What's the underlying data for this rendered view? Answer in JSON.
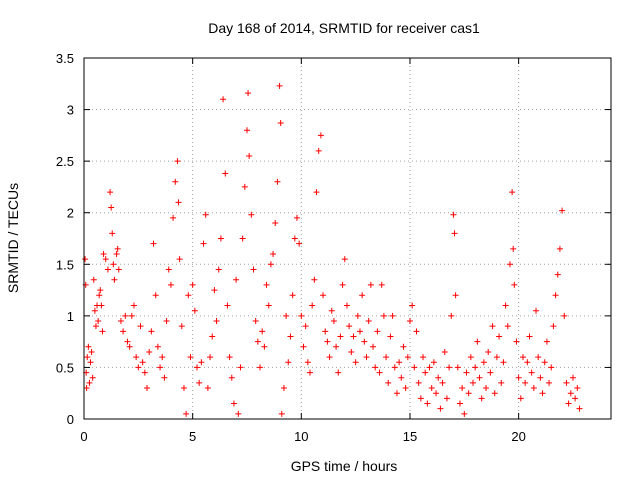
{
  "chart_data": {
    "type": "scatter",
    "title": "Day 168 of 2014, SRMTID for receiver cas1",
    "xlabel": "GPS time / hours",
    "ylabel": "SRMTID / TECUs",
    "xlim": [
      0,
      24.25
    ],
    "ylim": [
      0,
      3.5
    ],
    "x_ticks": [
      0,
      5,
      10,
      15,
      20
    ],
    "x_tick_labels": [
      "0",
      "5",
      "10",
      "15",
      "20"
    ],
    "y_ticks": [
      0,
      0.5,
      1,
      1.5,
      2,
      2.5,
      3,
      3.5
    ],
    "y_tick_labels": [
      "0",
      "0.5",
      "1",
      "1.5",
      "2",
      "2.5",
      "3",
      "3.5"
    ],
    "grid": true,
    "marker": "+",
    "marker_color": "#ff0000",
    "series": [
      {
        "name": "cas1",
        "points": [
          [
            0.05,
            1.55
          ],
          [
            0.08,
            1.3
          ],
          [
            0.1,
            0.45
          ],
          [
            0.12,
            0.3
          ],
          [
            0.15,
            0.6
          ],
          [
            0.2,
            0.7
          ],
          [
            0.25,
            0.35
          ],
          [
            0.3,
            0.55
          ],
          [
            0.35,
            0.65
          ],
          [
            0.4,
            0.4
          ],
          [
            0.45,
            1.35
          ],
          [
            0.5,
            1.05
          ],
          [
            0.55,
            0.9
          ],
          [
            0.6,
            1.1
          ],
          [
            0.65,
            0.95
          ],
          [
            0.7,
            1.2
          ],
          [
            0.75,
            1.25
          ],
          [
            0.8,
            1.1
          ],
          [
            0.85,
            0.85
          ],
          [
            0.9,
            1.6
          ],
          [
            1.0,
            1.55
          ],
          [
            1.1,
            1.45
          ],
          [
            1.2,
            2.2
          ],
          [
            1.25,
            2.05
          ],
          [
            1.3,
            1.8
          ],
          [
            1.35,
            1.5
          ],
          [
            1.4,
            1.35
          ],
          [
            1.5,
            1.6
          ],
          [
            1.55,
            1.65
          ],
          [
            1.6,
            1.45
          ],
          [
            1.7,
            0.95
          ],
          [
            1.8,
            0.85
          ],
          [
            1.9,
            1.0
          ],
          [
            2.0,
            0.75
          ],
          [
            2.1,
            0.7
          ],
          [
            2.2,
            1.0
          ],
          [
            2.3,
            1.1
          ],
          [
            2.4,
            0.6
          ],
          [
            2.5,
            0.5
          ],
          [
            2.6,
            0.9
          ],
          [
            2.7,
            0.55
          ],
          [
            2.8,
            0.45
          ],
          [
            2.9,
            0.3
          ],
          [
            3.0,
            0.65
          ],
          [
            3.1,
            0.85
          ],
          [
            3.2,
            1.7
          ],
          [
            3.3,
            1.2
          ],
          [
            3.4,
            0.7
          ],
          [
            3.5,
            0.5
          ],
          [
            3.6,
            0.6
          ],
          [
            3.7,
            0.4
          ],
          [
            3.8,
            0.95
          ],
          [
            3.9,
            1.45
          ],
          [
            4.0,
            1.3
          ],
          [
            4.1,
            1.95
          ],
          [
            4.2,
            2.3
          ],
          [
            4.3,
            2.5
          ],
          [
            4.35,
            2.1
          ],
          [
            4.4,
            1.55
          ],
          [
            4.5,
            0.9
          ],
          [
            4.6,
            0.3
          ],
          [
            4.7,
            0.05
          ],
          [
            4.8,
            1.2
          ],
          [
            4.9,
            0.6
          ],
          [
            5.0,
            1.3
          ],
          [
            5.1,
            1.05
          ],
          [
            5.2,
            0.5
          ],
          [
            5.3,
            0.35
          ],
          [
            5.4,
            0.55
          ],
          [
            5.5,
            1.7
          ],
          [
            5.6,
            1.98
          ],
          [
            5.7,
            0.3
          ],
          [
            5.8,
            0.6
          ],
          [
            5.9,
            0.8
          ],
          [
            6.0,
            1.25
          ],
          [
            6.1,
            0.95
          ],
          [
            6.2,
            1.45
          ],
          [
            6.3,
            1.75
          ],
          [
            6.4,
            3.1
          ],
          [
            6.5,
            2.38
          ],
          [
            6.6,
            1.1
          ],
          [
            6.7,
            0.6
          ],
          [
            6.8,
            0.4
          ],
          [
            6.9,
            0.15
          ],
          [
            7.0,
            1.35
          ],
          [
            7.1,
            0.05
          ],
          [
            7.2,
            0.5
          ],
          [
            7.3,
            1.75
          ],
          [
            7.4,
            2.25
          ],
          [
            7.5,
            2.8
          ],
          [
            7.55,
            3.16
          ],
          [
            7.6,
            2.55
          ],
          [
            7.7,
            1.98
          ],
          [
            7.8,
            1.45
          ],
          [
            7.9,
            0.95
          ],
          [
            8.0,
            0.75
          ],
          [
            8.1,
            0.5
          ],
          [
            8.2,
            0.85
          ],
          [
            8.3,
            0.7
          ],
          [
            8.4,
            1.3
          ],
          [
            8.5,
            1.1
          ],
          [
            8.6,
            1.5
          ],
          [
            8.7,
            1.6
          ],
          [
            8.8,
            1.9
          ],
          [
            8.9,
            2.3
          ],
          [
            9.0,
            3.23
          ],
          [
            9.05,
            2.87
          ],
          [
            9.1,
            0.05
          ],
          [
            9.2,
            0.3
          ],
          [
            9.3,
            1.0
          ],
          [
            9.4,
            0.55
          ],
          [
            9.5,
            0.8
          ],
          [
            9.6,
            1.2
          ],
          [
            9.7,
            1.75
          ],
          [
            9.8,
            1.95
          ],
          [
            9.9,
            1.7
          ],
          [
            10.0,
            1.0
          ],
          [
            10.1,
            0.7
          ],
          [
            10.2,
            0.9
          ],
          [
            10.3,
            0.55
          ],
          [
            10.4,
            0.45
          ],
          [
            10.5,
            1.1
          ],
          [
            10.6,
            1.35
          ],
          [
            10.7,
            2.2
          ],
          [
            10.8,
            2.6
          ],
          [
            10.9,
            2.75
          ],
          [
            11.0,
            1.2
          ],
          [
            11.1,
            0.85
          ],
          [
            11.2,
            0.75
          ],
          [
            11.3,
            0.6
          ],
          [
            11.4,
            1.05
          ],
          [
            11.5,
            0.95
          ],
          [
            11.6,
            0.7
          ],
          [
            11.7,
            0.45
          ],
          [
            11.8,
            0.8
          ],
          [
            11.9,
            1.3
          ],
          [
            12.0,
            1.55
          ],
          [
            12.1,
            1.1
          ],
          [
            12.2,
            0.9
          ],
          [
            12.3,
            0.65
          ],
          [
            12.4,
            0.8
          ],
          [
            12.5,
            0.55
          ],
          [
            12.6,
            1.0
          ],
          [
            12.7,
            0.85
          ],
          [
            12.8,
            1.2
          ],
          [
            12.9,
            0.75
          ],
          [
            13.0,
            0.6
          ],
          [
            13.1,
            0.95
          ],
          [
            13.2,
            1.3
          ],
          [
            13.3,
            0.7
          ],
          [
            13.4,
            0.5
          ],
          [
            13.5,
            0.85
          ],
          [
            13.6,
            0.45
          ],
          [
            13.7,
            1.3
          ],
          [
            13.8,
            1.0
          ],
          [
            13.9,
            0.6
          ],
          [
            14.0,
            0.35
          ],
          [
            14.1,
            0.8
          ],
          [
            14.2,
            1.0
          ],
          [
            14.3,
            0.5
          ],
          [
            14.4,
            0.25
          ],
          [
            14.5,
            0.55
          ],
          [
            14.6,
            0.4
          ],
          [
            14.7,
            0.7
          ],
          [
            14.8,
            0.3
          ],
          [
            14.9,
            0.6
          ],
          [
            15.0,
            0.95
          ],
          [
            15.1,
            1.1
          ],
          [
            15.2,
            0.5
          ],
          [
            15.3,
            0.85
          ],
          [
            15.4,
            0.35
          ],
          [
            15.5,
            0.2
          ],
          [
            15.6,
            0.6
          ],
          [
            15.7,
            0.45
          ],
          [
            15.8,
            0.15
          ],
          [
            15.9,
            0.5
          ],
          [
            16.0,
            0.3
          ],
          [
            16.1,
            0.55
          ],
          [
            16.2,
            0.25
          ],
          [
            16.3,
            0.4
          ],
          [
            16.4,
            0.1
          ],
          [
            16.5,
            0.35
          ],
          [
            16.6,
            0.65
          ],
          [
            16.7,
            0.2
          ],
          [
            16.8,
            0.5
          ],
          [
            16.9,
            1.0
          ],
          [
            17.0,
            1.98
          ],
          [
            17.05,
            1.8
          ],
          [
            17.1,
            1.2
          ],
          [
            17.2,
            0.5
          ],
          [
            17.3,
            0.15
          ],
          [
            17.4,
            0.3
          ],
          [
            17.5,
            0.05
          ],
          [
            17.6,
            0.45
          ],
          [
            17.7,
            0.25
          ],
          [
            17.8,
            0.6
          ],
          [
            17.9,
            0.35
          ],
          [
            18.0,
            0.5
          ],
          [
            18.1,
            0.75
          ],
          [
            18.2,
            0.4
          ],
          [
            18.3,
            0.2
          ],
          [
            18.4,
            0.55
          ],
          [
            18.5,
            0.3
          ],
          [
            18.6,
            0.65
          ],
          [
            18.7,
            0.45
          ],
          [
            18.8,
            0.9
          ],
          [
            18.9,
            0.25
          ],
          [
            19.0,
            0.6
          ],
          [
            19.1,
            0.8
          ],
          [
            19.2,
            0.35
          ],
          [
            19.3,
            0.55
          ],
          [
            19.4,
            1.1
          ],
          [
            19.5,
            0.9
          ],
          [
            19.6,
            1.5
          ],
          [
            19.7,
            2.2
          ],
          [
            19.75,
            1.65
          ],
          [
            19.8,
            1.3
          ],
          [
            19.9,
            0.75
          ],
          [
            20.0,
            0.4
          ],
          [
            20.1,
            0.2
          ],
          [
            20.2,
            0.6
          ],
          [
            20.3,
            0.35
          ],
          [
            20.4,
            0.55
          ],
          [
            20.5,
            0.8
          ],
          [
            20.6,
            0.45
          ],
          [
            20.7,
            0.3
          ],
          [
            20.8,
            1.05
          ],
          [
            20.9,
            0.6
          ],
          [
            21.0,
            0.4
          ],
          [
            21.1,
            0.25
          ],
          [
            21.2,
            0.55
          ],
          [
            21.3,
            0.75
          ],
          [
            21.4,
            0.35
          ],
          [
            21.5,
            0.5
          ],
          [
            21.6,
            0.9
          ],
          [
            21.7,
            1.2
          ],
          [
            21.8,
            1.4
          ],
          [
            21.9,
            1.65
          ],
          [
            22.0,
            2.02
          ],
          [
            22.1,
            1.0
          ],
          [
            22.2,
            0.35
          ],
          [
            22.3,
            0.15
          ],
          [
            22.4,
            0.25
          ],
          [
            22.5,
            0.4
          ],
          [
            22.6,
            0.2
          ],
          [
            22.7,
            0.3
          ],
          [
            22.8,
            0.1
          ]
        ]
      }
    ]
  }
}
